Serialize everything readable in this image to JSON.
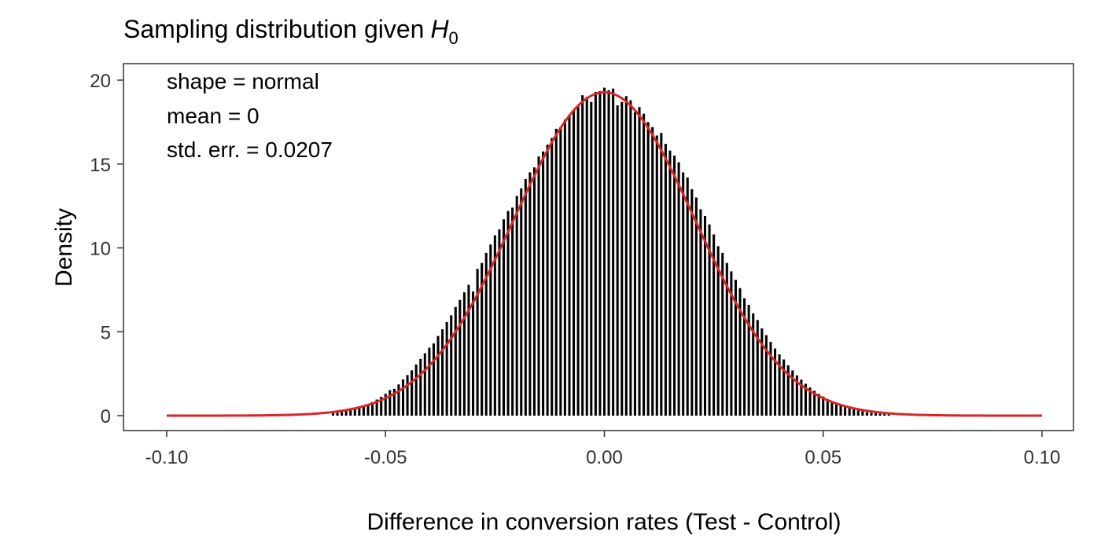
{
  "chart_data": {
    "type": "bar",
    "subtype": "histogram-with-density-curve",
    "title": "Sampling distribution given",
    "title_math": {
      "symbol": "H",
      "subscript": "0"
    },
    "xlabel": "Difference in conversion rates (Test - Control)",
    "ylabel": "Density",
    "xlim": [
      -0.1,
      0.1
    ],
    "ylim": [
      0,
      20
    ],
    "x_ticks": [
      -0.1,
      -0.05,
      0.0,
      0.05,
      0.1
    ],
    "x_tick_labels": [
      "-0.10",
      "-0.05",
      "0.00",
      "0.05",
      "0.10"
    ],
    "y_ticks": [
      0,
      5,
      10,
      15,
      20
    ],
    "y_tick_labels": [
      "0",
      "5",
      "10",
      "15",
      "20"
    ],
    "grid": false,
    "annotations": [
      "shape = normal",
      "mean = 0",
      "std. err. = 0.0207"
    ],
    "histogram": {
      "bin_width": 0.001,
      "bins": [
        [
          -0.062,
          0.14
        ],
        [
          -0.061,
          0.18
        ],
        [
          -0.06,
          0.22
        ],
        [
          -0.059,
          0.27
        ],
        [
          -0.058,
          0.33
        ],
        [
          -0.057,
          0.4
        ],
        [
          -0.056,
          0.48
        ],
        [
          -0.055,
          0.57
        ],
        [
          -0.054,
          0.68
        ],
        [
          -0.053,
          0.81
        ],
        [
          -0.052,
          0.96
        ],
        [
          -0.051,
          1.12
        ],
        [
          -0.05,
          1.31
        ],
        [
          -0.049,
          1.52
        ],
        [
          -0.048,
          1.6
        ],
        [
          -0.047,
          1.86
        ],
        [
          -0.046,
          2.16
        ],
        [
          -0.045,
          2.42
        ],
        [
          -0.044,
          2.7
        ],
        [
          -0.043,
          3.05
        ],
        [
          -0.042,
          3.38
        ],
        [
          -0.041,
          3.72
        ],
        [
          -0.04,
          4.05
        ],
        [
          -0.039,
          4.3
        ],
        [
          -0.038,
          4.75
        ],
        [
          -0.037,
          5.15
        ],
        [
          -0.036,
          5.58
        ],
        [
          -0.035,
          5.98
        ],
        [
          -0.034,
          6.48
        ],
        [
          -0.033,
          6.9
        ],
        [
          -0.032,
          7.35
        ],
        [
          -0.031,
          7.8
        ],
        [
          -0.03,
          7.4
        ],
        [
          -0.029,
          8.75
        ],
        [
          -0.028,
          9.1
        ],
        [
          -0.027,
          9.7
        ],
        [
          -0.026,
          10.2
        ],
        [
          -0.025,
          10.75
        ],
        [
          -0.024,
          11.1
        ],
        [
          -0.023,
          11.7
        ],
        [
          -0.022,
          12.2
        ],
        [
          -0.021,
          12.4
        ],
        [
          -0.02,
          13.1
        ],
        [
          -0.019,
          13.55
        ],
        [
          -0.018,
          14.1
        ],
        [
          -0.017,
          14.5
        ],
        [
          -0.016,
          14.8
        ],
        [
          -0.015,
          15.45
        ],
        [
          -0.014,
          15.75
        ],
        [
          -0.013,
          16.15
        ],
        [
          -0.012,
          16.55
        ],
        [
          -0.011,
          17.1
        ],
        [
          -0.01,
          17.2
        ],
        [
          -0.009,
          17.65
        ],
        [
          -0.008,
          17.95
        ],
        [
          -0.007,
          18.2
        ],
        [
          -0.006,
          18.45
        ],
        [
          -0.005,
          19.1
        ],
        [
          -0.004,
          19.0
        ],
        [
          -0.003,
          18.7
        ],
        [
          -0.002,
          19.3
        ],
        [
          -0.001,
          19.35
        ],
        [
          0.0,
          19.55
        ],
        [
          0.001,
          19.4
        ],
        [
          0.002,
          19.5
        ],
        [
          0.003,
          18.5
        ],
        [
          0.004,
          18.7
        ],
        [
          0.005,
          19.05
        ],
        [
          0.006,
          18.8
        ],
        [
          0.007,
          18.1
        ],
        [
          0.008,
          18.4
        ],
        [
          0.009,
          18.0
        ],
        [
          0.01,
          17.5
        ],
        [
          0.011,
          17.2
        ],
        [
          0.012,
          16.7
        ],
        [
          0.013,
          16.85
        ],
        [
          0.014,
          16.2
        ],
        [
          0.015,
          15.8
        ],
        [
          0.016,
          15.5
        ],
        [
          0.017,
          15.1
        ],
        [
          0.018,
          14.5
        ],
        [
          0.019,
          14.2
        ],
        [
          0.02,
          13.5
        ],
        [
          0.021,
          13.0
        ],
        [
          0.022,
          12.3
        ],
        [
          0.023,
          11.9
        ],
        [
          0.024,
          11.4
        ],
        [
          0.025,
          10.8
        ],
        [
          0.026,
          10.1
        ],
        [
          0.027,
          9.7
        ],
        [
          0.028,
          9.1
        ],
        [
          0.029,
          8.6
        ],
        [
          0.03,
          8.1
        ],
        [
          0.031,
          7.6
        ],
        [
          0.032,
          7.0
        ],
        [
          0.033,
          6.6
        ],
        [
          0.034,
          6.1
        ],
        [
          0.035,
          5.7
        ],
        [
          0.036,
          5.2
        ],
        [
          0.037,
          4.8
        ],
        [
          0.038,
          4.4
        ],
        [
          0.039,
          4.0
        ],
        [
          0.04,
          3.65
        ],
        [
          0.041,
          3.35
        ],
        [
          0.042,
          3.0
        ],
        [
          0.043,
          2.7
        ],
        [
          0.044,
          2.4
        ],
        [
          0.045,
          2.15
        ],
        [
          0.046,
          1.9
        ],
        [
          0.047,
          1.68
        ],
        [
          0.048,
          1.48
        ],
        [
          0.049,
          1.3
        ],
        [
          0.05,
          1.14
        ],
        [
          0.051,
          0.98
        ],
        [
          0.052,
          0.84
        ],
        [
          0.053,
          0.72
        ],
        [
          0.054,
          0.62
        ],
        [
          0.055,
          0.52
        ],
        [
          0.056,
          0.44
        ],
        [
          0.057,
          0.37
        ],
        [
          0.058,
          0.31
        ],
        [
          0.059,
          0.26
        ],
        [
          0.06,
          0.21
        ],
        [
          0.061,
          0.17
        ],
        [
          0.062,
          0.14
        ],
        [
          0.063,
          0.11
        ],
        [
          0.064,
          0.09
        ],
        [
          0.065,
          0.07
        ]
      ]
    },
    "density_curve": {
      "distribution": "normal",
      "mean": 0,
      "sd": 0.0207,
      "x_range": [
        -0.1,
        0.1
      ],
      "color": "#d62728"
    },
    "colors": {
      "bars": "#000000",
      "curve": "#d62728",
      "panel_border": "#333333"
    }
  }
}
